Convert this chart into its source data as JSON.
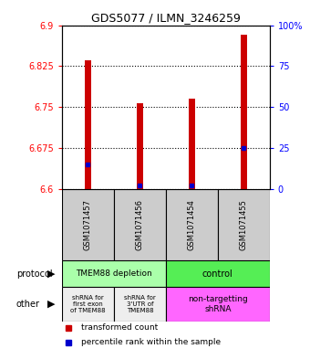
{
  "title": "GDS5077 / ILMN_3246259",
  "samples": [
    "GSM1071457",
    "GSM1071456",
    "GSM1071454",
    "GSM1071455"
  ],
  "red_values": [
    6.835,
    6.757,
    6.765,
    6.882
  ],
  "blue_percentiles": [
    15,
    2,
    2,
    25
  ],
  "ymin": 6.6,
  "ymax": 6.9,
  "yticks": [
    6.6,
    6.675,
    6.75,
    6.825,
    6.9
  ],
  "ytick_labels": [
    "6.6",
    "6.675",
    "6.75",
    "6.825",
    "6.9"
  ],
  "right_yticks": [
    0,
    25,
    50,
    75,
    100
  ],
  "right_ytick_labels": [
    "0",
    "25",
    "50",
    "75",
    "100%"
  ],
  "bar_color": "#cc0000",
  "blue_color": "#0000cc",
  "bar_width": 0.12,
  "protocol_left_color": "#aaffaa",
  "protocol_right_color": "#55ee55",
  "other_left1_color": "#eeeeee",
  "other_left2_color": "#eeeeee",
  "other_right_color": "#ff66ff",
  "legend_red": "transformed count",
  "legend_blue": "percentile rank within the sample"
}
